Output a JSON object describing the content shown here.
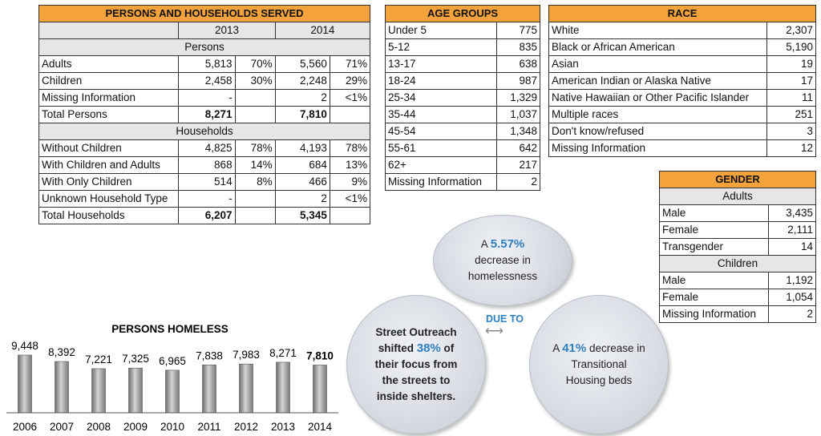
{
  "persons_table": {
    "title": "PERSONS AND HOUSEHOLDS SERVED",
    "years": [
      "2013",
      "2014"
    ],
    "persons_label": "Persons",
    "persons_rows": [
      {
        "label": "Adults",
        "v2013": "5,813",
        "p2013": "70%",
        "v2014": "5,560",
        "p2014": "71%"
      },
      {
        "label": "Children",
        "v2013": "2,458",
        "p2013": "30%",
        "v2014": "2,248",
        "p2014": "29%"
      },
      {
        "label": "Missing Information",
        "v2013": "-",
        "p2013": "",
        "v2014": "2",
        "p2014": "<1%"
      }
    ],
    "total_persons": {
      "label": "Total Persons",
      "v2013": "8,271",
      "v2014": "7,810"
    },
    "households_label": "Households",
    "household_rows": [
      {
        "label": "Without Children",
        "v2013": "4,825",
        "p2013": "78%",
        "v2014": "4,193",
        "p2014": "78%"
      },
      {
        "label": "With Children and Adults",
        "v2013": "868",
        "p2013": "14%",
        "v2014": "684",
        "p2014": "13%"
      },
      {
        "label": "With Only Children",
        "v2013": "514",
        "p2013": "8%",
        "v2014": "466",
        "p2014": "9%"
      },
      {
        "label": "Unknown Household Type",
        "v2013": "-",
        "p2013": "",
        "v2014": "2",
        "p2014": "<1%"
      }
    ],
    "total_households": {
      "label": "Total Households",
      "v2013": "6,207",
      "v2014": "5,345"
    }
  },
  "age_table": {
    "title": "AGE GROUPS",
    "rows": [
      {
        "label": "Under 5",
        "value": "775"
      },
      {
        "label": "5-12",
        "value": "835"
      },
      {
        "label": "13-17",
        "value": "638"
      },
      {
        "label": "18-24",
        "value": "987"
      },
      {
        "label": "25-34",
        "value": "1,329"
      },
      {
        "label": "35-44",
        "value": "1,037"
      },
      {
        "label": "45-54",
        "value": "1,348"
      },
      {
        "label": "55-61",
        "value": "642"
      },
      {
        "label": "62+",
        "value": "217"
      },
      {
        "label": "Missing Information",
        "value": "2"
      }
    ]
  },
  "race_table": {
    "title": "RACE",
    "rows": [
      {
        "label": "White",
        "value": "2,307"
      },
      {
        "label": "Black or African American",
        "value": "5,190"
      },
      {
        "label": "Asian",
        "value": "19"
      },
      {
        "label": "American Indian or Alaska Native",
        "value": "17"
      },
      {
        "label": "Native Hawaiian or Other Pacific Islander",
        "value": "11"
      },
      {
        "label": "Multiple races",
        "value": "251"
      },
      {
        "label": "Don't know/refused",
        "value": "3"
      },
      {
        "label": "Missing Information",
        "value": "12"
      }
    ]
  },
  "gender_table": {
    "title": "GENDER",
    "adults_label": "Adults",
    "adult_rows": [
      {
        "label": "Male",
        "value": "3,435"
      },
      {
        "label": "Female",
        "value": "2,111"
      },
      {
        "label": "Transgender",
        "value": "14"
      }
    ],
    "children_label": "Children",
    "children_rows": [
      {
        "label": "Male",
        "value": "1,192"
      },
      {
        "label": "Female",
        "value": "1,054"
      },
      {
        "label": "Missing Information",
        "value": "2"
      }
    ]
  },
  "bubbles": {
    "top_pre": "A ",
    "top_highlight": "5.57%",
    "top_post": "decrease in homelessness",
    "due_to": "DUE TO",
    "left_pre": "Street Outreach shifted ",
    "left_highlight": "38%",
    "left_post": " of their focus from the streets to inside shelters.",
    "right_pre": "A ",
    "right_highlight": "41%",
    "right_post": " decrease in Transitional Housing beds"
  },
  "colors": {
    "header_orange": "#f4a23c",
    "accent_blue": "#2f7fc1",
    "bar_gray": "#8c8c8c"
  },
  "chart_data": {
    "type": "bar",
    "title": "PERSONS HOMELESS",
    "categories": [
      "2006",
      "2007",
      "2008",
      "2009",
      "2010",
      "2011",
      "2012",
      "2013",
      "2014"
    ],
    "values": [
      9448,
      8392,
      7221,
      7325,
      6965,
      7838,
      7983,
      8271,
      7810
    ],
    "value_labels": [
      "9,448",
      "8,392",
      "7,221",
      "7,325",
      "6,965",
      "7,838",
      "7,983",
      "8,271",
      "7,810"
    ],
    "xlabel": "",
    "ylabel": "",
    "grid": false,
    "legend": "none"
  }
}
